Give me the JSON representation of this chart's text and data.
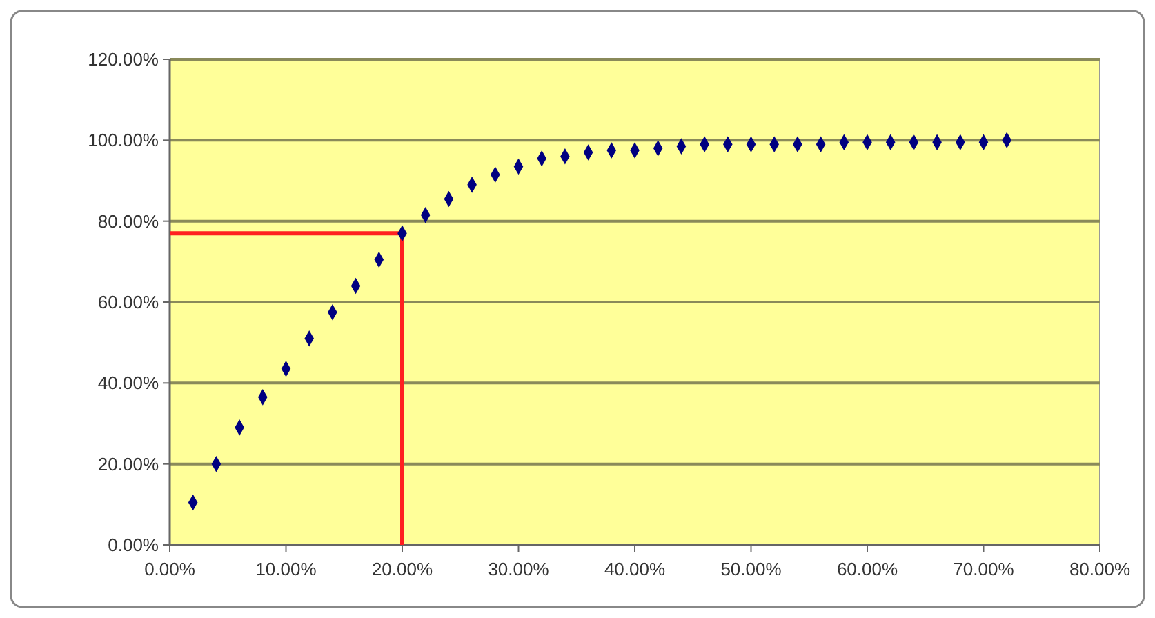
{
  "chart_data": {
    "type": "scatter",
    "marker": "diamond",
    "grid": "y",
    "xlim": [
      0,
      80
    ],
    "ylim": [
      0,
      120
    ],
    "xticks": [
      {
        "value": 0,
        "label": "0.00%"
      },
      {
        "value": 10,
        "label": "10.00%"
      },
      {
        "value": 20,
        "label": "20.00%"
      },
      {
        "value": 30,
        "label": "30.00%"
      },
      {
        "value": 40,
        "label": "40.00%"
      },
      {
        "value": 50,
        "label": "50.00%"
      },
      {
        "value": 60,
        "label": "60.00%"
      },
      {
        "value": 70,
        "label": "70.00%"
      },
      {
        "value": 80,
        "label": "80.00%"
      }
    ],
    "yticks": [
      {
        "value": 0,
        "label": "0.00%"
      },
      {
        "value": 20,
        "label": "20.00%"
      },
      {
        "value": 40,
        "label": "40.00%"
      },
      {
        "value": 60,
        "label": "60.00%"
      },
      {
        "value": 80,
        "label": "80.00%"
      },
      {
        "value": 100,
        "label": "100.00%"
      },
      {
        "value": 120,
        "label": "120.00%"
      }
    ],
    "series": [
      {
        "type": "line",
        "marker": "none",
        "color": "#ff2020",
        "x": [
          0,
          20,
          20
        ],
        "values": [
          77,
          77,
          0
        ]
      },
      {
        "color": "#000080",
        "x": [
          2,
          4,
          6,
          8,
          10,
          12,
          14,
          16,
          18,
          20,
          22,
          24,
          26,
          28,
          30,
          32,
          34,
          36,
          38,
          40,
          42,
          44,
          46,
          48,
          50,
          52,
          54,
          56,
          58,
          60,
          62,
          64,
          66,
          68,
          70,
          72
        ],
        "values": [
          10.5,
          20,
          29,
          36.5,
          43.5,
          51,
          57.5,
          64,
          70.5,
          77,
          81.5,
          85.5,
          89,
          91.5,
          93.5,
          95.5,
          96,
          97,
          97.5,
          97.5,
          98,
          98.5,
          99,
          99,
          99,
          99,
          99,
          99,
          99.5,
          99.5,
          99.5,
          99.5,
          99.5,
          99.5,
          99.5,
          100
        ]
      }
    ]
  }
}
